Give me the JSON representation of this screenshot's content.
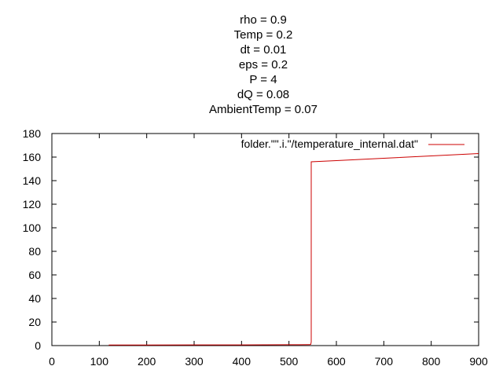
{
  "title_lines": [
    "rho = 0.9",
    "Temp = 0.2",
    "dt = 0.01",
    "eps = 0.2",
    "P = 4",
    "dQ = 0.08",
    "AmbientTemp = 0.07"
  ],
  "colors": {
    "series": "#cc0000",
    "axis": "#000000",
    "background": "#ffffff"
  },
  "chart_data": {
    "type": "line",
    "xlim": [
      0,
      900
    ],
    "ylim": [
      0,
      180
    ],
    "xticks": [
      0,
      100,
      200,
      300,
      400,
      500,
      600,
      700,
      800,
      900
    ],
    "yticks": [
      0,
      20,
      40,
      60,
      80,
      100,
      120,
      140,
      160,
      180
    ],
    "grid": false,
    "legend_position": "top-right",
    "series": [
      {
        "name": "folder.\"\".i.\"/temperature_internal.dat\"",
        "x": [
          120,
          200,
          300,
          400,
          500,
          544,
          546,
          547,
          547,
          600,
          700,
          800,
          900
        ],
        "y": [
          0.5,
          0.5,
          0.6,
          0.6,
          0.7,
          0.8,
          1.0,
          3,
          156,
          157,
          159,
          161,
          163
        ]
      }
    ]
  }
}
